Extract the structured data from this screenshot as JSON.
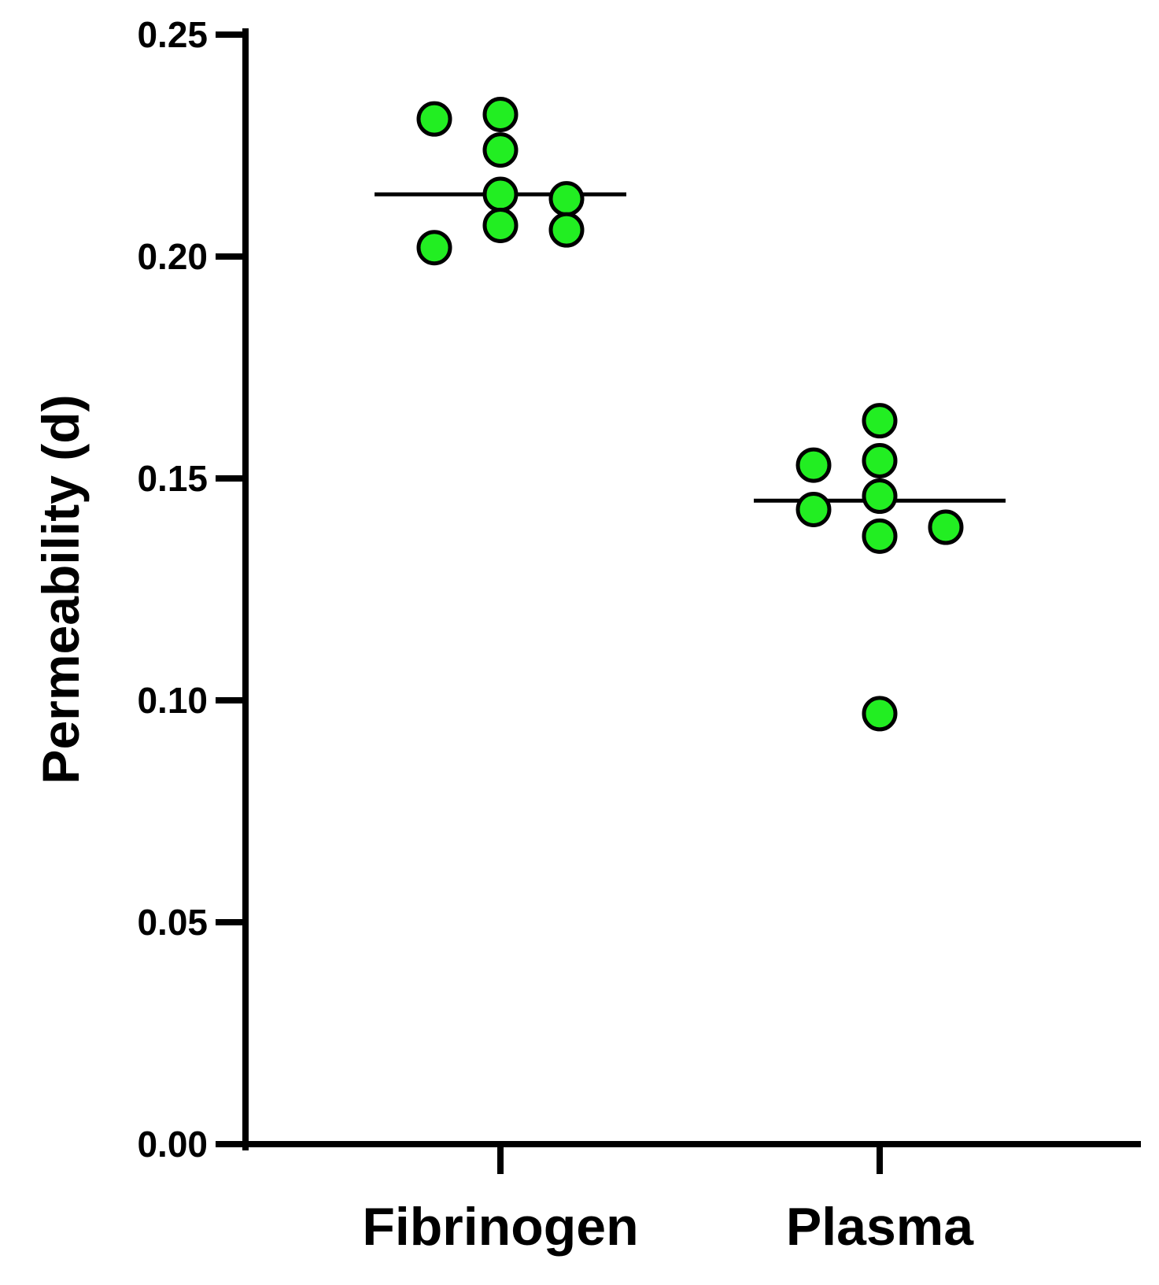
{
  "chart_data": {
    "type": "scatter",
    "title": "",
    "xlabel": "",
    "ylabel": "Permeability (d)",
    "ylim": [
      0,
      0.25
    ],
    "yticks": [
      "0.00",
      "0.05",
      "0.10",
      "0.15",
      "0.20",
      "0.25"
    ],
    "ytick_values": [
      0,
      0.05,
      0.1,
      0.15,
      0.2,
      0.25
    ],
    "categories": [
      "Fibrinogen",
      "Plasma"
    ],
    "grid": false,
    "marker_color": "#22ee22",
    "marker_edge_color": "#000000",
    "series": [
      {
        "category": "Fibrinogen",
        "values": [
          0.231,
          0.202,
          0.232,
          0.224,
          0.214,
          0.207,
          0.213,
          0.206
        ],
        "median": 0.214
      },
      {
        "category": "Plasma",
        "values": [
          0.153,
          0.143,
          0.163,
          0.154,
          0.146,
          0.137,
          0.097,
          0.139
        ],
        "median": 0.145
      }
    ]
  }
}
